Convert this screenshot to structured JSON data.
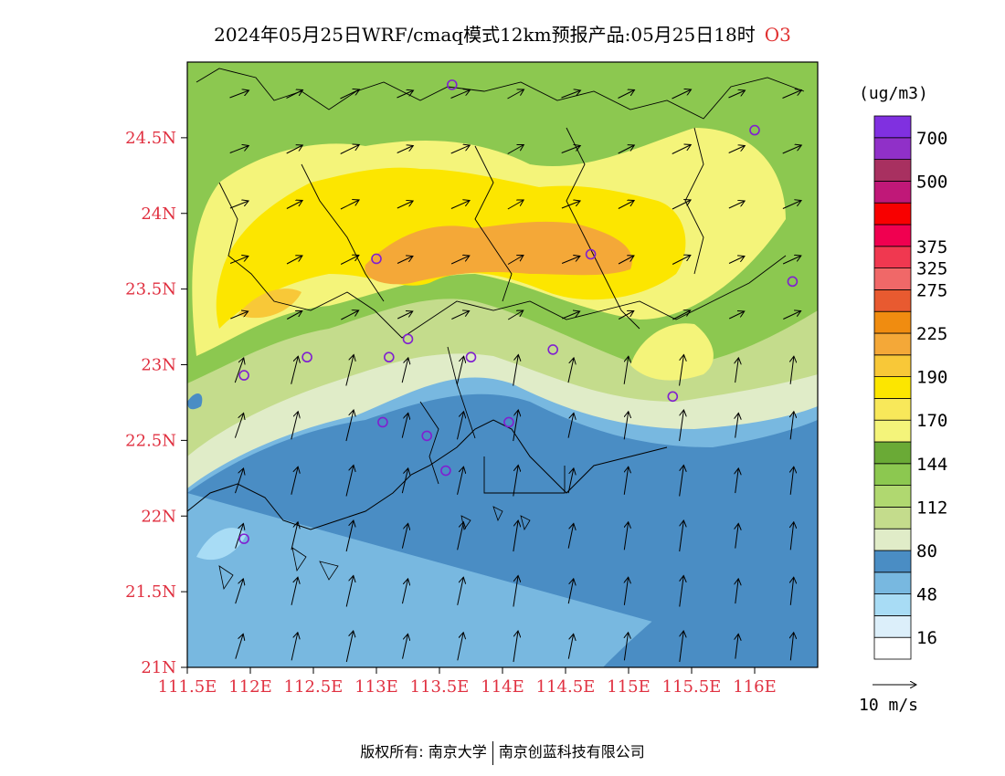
{
  "title": {
    "text": "2024年05月25日WRF/cmaq模式12km预报产品:05月25日18时",
    "species": "O3"
  },
  "map": {
    "lon_range": [
      111.5,
      116.5
    ],
    "lat_range": [
      21.0,
      25.0
    ],
    "lat_ticks": [
      "24.5N",
      "24N",
      "23.5N",
      "23N",
      "22.5N",
      "22N",
      "21.5N",
      "21N"
    ],
    "lon_ticks": [
      "111.5E",
      "112E",
      "112.5E",
      "113E",
      "113.5E",
      "114E",
      "114.5E",
      "115E",
      "115.5E",
      "116E"
    ],
    "sites": [
      {
        "lon": 113.6,
        "lat": 24.85
      },
      {
        "lon": 116.0,
        "lat": 24.55
      },
      {
        "lon": 113.0,
        "lat": 23.7
      },
      {
        "lon": 114.7,
        "lat": 23.73
      },
      {
        "lon": 116.3,
        "lat": 23.55
      },
      {
        "lon": 112.45,
        "lat": 23.05
      },
      {
        "lon": 113.1,
        "lat": 23.05
      },
      {
        "lon": 113.25,
        "lat": 23.17
      },
      {
        "lon": 113.75,
        "lat": 23.05
      },
      {
        "lon": 114.4,
        "lat": 23.1
      },
      {
        "lon": 111.95,
        "lat": 22.93
      },
      {
        "lon": 115.35,
        "lat": 22.79
      },
      {
        "lon": 113.05,
        "lat": 22.62
      },
      {
        "lon": 114.05,
        "lat": 22.62
      },
      {
        "lon": 113.4,
        "lat": 22.53
      },
      {
        "lon": 113.55,
        "lat": 22.3
      },
      {
        "lon": 111.95,
        "lat": 21.85
      }
    ]
  },
  "legend": {
    "unit": "(ug/m3)",
    "bins": [
      {
        "color": "#ffffff"
      },
      {
        "color": "#dceffa"
      },
      {
        "color": "#a8dcf5"
      },
      {
        "color": "#78b8e0"
      },
      {
        "color": "#4a8dc4"
      },
      {
        "color": "#e0ecc8"
      },
      {
        "color": "#c4dc8c"
      },
      {
        "color": "#b0d870"
      },
      {
        "color": "#8cc850"
      },
      {
        "color": "#6aaa36"
      },
      {
        "color": "#f4f47a"
      },
      {
        "color": "#f8e85a"
      },
      {
        "color": "#fce600"
      },
      {
        "color": "#f8c838"
      },
      {
        "color": "#f4a838"
      },
      {
        "color": "#f08c10"
      },
      {
        "color": "#e85a30"
      },
      {
        "color": "#f06868"
      },
      {
        "color": "#f03850"
      },
      {
        "color": "#f00050"
      },
      {
        "color": "#f80000"
      },
      {
        "color": "#c01878"
      },
      {
        "color": "#a83060"
      },
      {
        "color": "#9030c8"
      },
      {
        "color": "#8030e0"
      }
    ],
    "labels": [
      {
        "bin": 1,
        "text": "16"
      },
      {
        "bin": 3,
        "text": "48"
      },
      {
        "bin": 5,
        "text": "80"
      },
      {
        "bin": 7,
        "text": "112"
      },
      {
        "bin": 9,
        "text": "144"
      },
      {
        "bin": 11,
        "text": "170"
      },
      {
        "bin": 13,
        "text": "190"
      },
      {
        "bin": 15,
        "text": "225"
      },
      {
        "bin": 17,
        "text": "275"
      },
      {
        "bin": 18,
        "text": "325"
      },
      {
        "bin": 19,
        "text": "375"
      },
      {
        "bin": 22,
        "text": "500"
      },
      {
        "bin": 24,
        "text": "700"
      }
    ]
  },
  "wind_reference": {
    "label": "10 m/s"
  },
  "copyright": {
    "left": "版权所有: 南京大学",
    "right": "南京创蓝科技有限公司"
  }
}
